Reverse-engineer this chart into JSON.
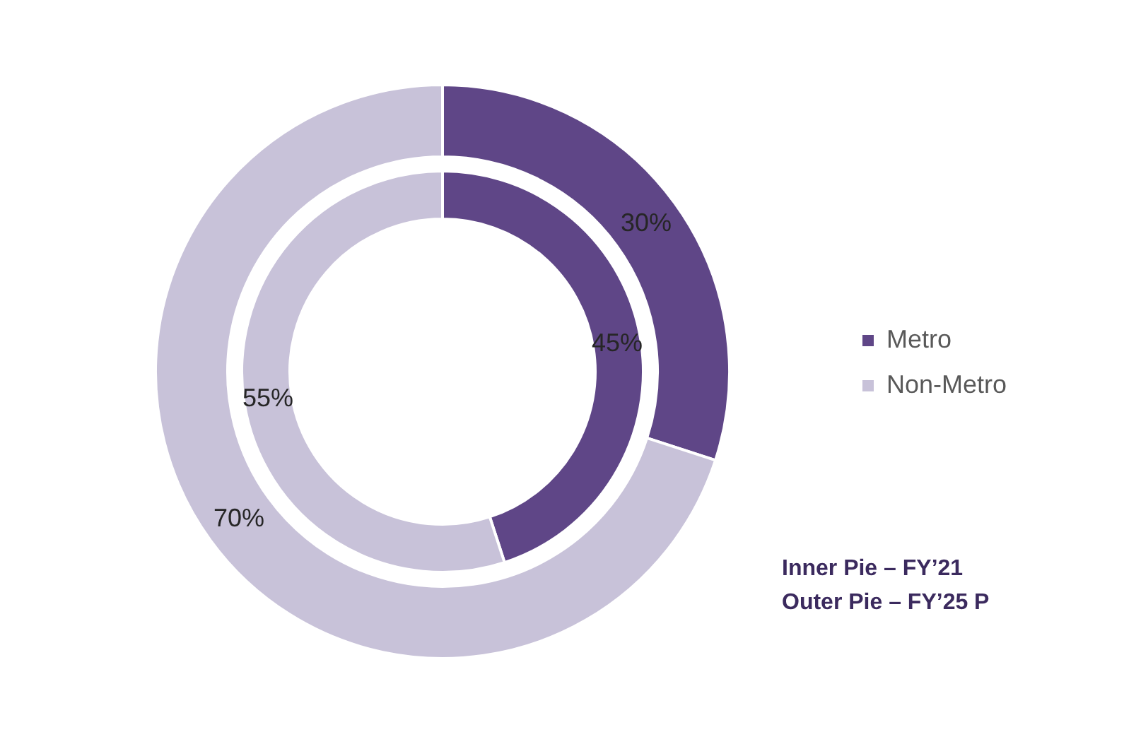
{
  "chart_data": {
    "type": "donut",
    "categories": [
      "Metro",
      "Non-Metro"
    ],
    "colors": [
      "#5f4687",
      "#c8c2d9"
    ],
    "series": [
      {
        "values": [
          45,
          55
        ],
        "value_labels": [
          "45%",
          "55%"
        ]
      },
      {
        "values": [
          30,
          70
        ],
        "value_labels": [
          "30%",
          "70%"
        ]
      }
    ],
    "legend": "right",
    "annotations": [
      "Inner Pie – FY’21",
      "Outer Pie – FY’25 P"
    ]
  }
}
